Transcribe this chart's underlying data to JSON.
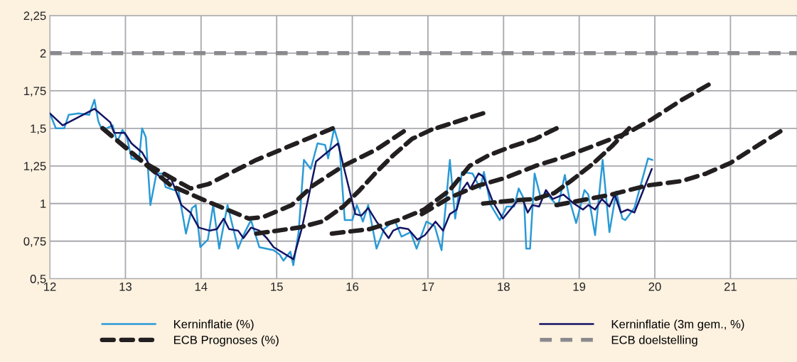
{
  "chart_data": {
    "type": "line",
    "xlim": [
      12,
      21.88
    ],
    "ylim": [
      0.5,
      2.25
    ],
    "xticks": [
      12,
      13,
      14,
      15,
      16,
      17,
      18,
      19,
      20,
      21
    ],
    "yticks": [
      {
        "value": 0.5,
        "label": "0,5"
      },
      {
        "value": 0.75,
        "label": "0,75"
      },
      {
        "value": 1,
        "label": "1"
      },
      {
        "value": 1.25,
        "label": "1,25"
      },
      {
        "value": 1.5,
        "label": "1,5"
      },
      {
        "value": 1.75,
        "label": "1,75"
      },
      {
        "value": 2,
        "label": "2"
      },
      {
        "value": 2.25,
        "label": "2,25"
      }
    ],
    "grid": true,
    "legend": "bottom",
    "ref_lines": [
      {
        "axis": "y",
        "value": 2,
        "label": "ECB doelstelling",
        "color": "#8a8a8e",
        "line_style": "dashed"
      }
    ],
    "series": [
      {
        "name": "Kerninflatie (%)",
        "color": "#2a9ad6",
        "line_style": "solid",
        "x": [
          12.0,
          12.08,
          12.19,
          12.25,
          12.38,
          12.52,
          12.59,
          12.64,
          12.68,
          12.75,
          12.83,
          12.89,
          12.96,
          13.02,
          13.08,
          13.18,
          13.22,
          13.27,
          13.33,
          13.41,
          13.49,
          13.53,
          13.64,
          13.7,
          13.8,
          13.88,
          13.93,
          13.99,
          14.09,
          14.16,
          14.24,
          14.35,
          14.49,
          14.57,
          14.66,
          14.77,
          14.96,
          15.04,
          15.09,
          15.18,
          15.22,
          15.29,
          15.36,
          15.45,
          15.54,
          15.64,
          15.68,
          15.76,
          15.83,
          15.9,
          16.0,
          16.06,
          16.14,
          16.21,
          16.32,
          16.42,
          16.56,
          16.65,
          16.77,
          16.85,
          16.98,
          17.09,
          17.18,
          17.29,
          17.36,
          17.45,
          17.59,
          17.69,
          17.74,
          17.83,
          17.95,
          18.04,
          18.14,
          18.2,
          18.27,
          18.3,
          18.35,
          18.41,
          18.49,
          18.56,
          18.72,
          18.81,
          18.88,
          18.96,
          19.07,
          19.12,
          19.21,
          19.31,
          19.4,
          19.44,
          19.49,
          19.57,
          19.61,
          19.73,
          19.91,
          19.97
        ],
        "values": [
          1.6,
          1.5,
          1.5,
          1.59,
          1.6,
          1.59,
          1.69,
          1.55,
          1.5,
          1.5,
          1.52,
          1.41,
          1.49,
          1.44,
          1.3,
          1.29,
          1.5,
          1.44,
          0.99,
          1.2,
          1.2,
          1.11,
          1.09,
          1.09,
          0.8,
          0.97,
          0.99,
          0.71,
          0.76,
          0.99,
          0.7,
          0.99,
          0.7,
          0.8,
          0.89,
          0.71,
          0.69,
          0.66,
          0.62,
          0.68,
          0.59,
          0.81,
          1.29,
          1.23,
          1.4,
          1.39,
          1.3,
          1.5,
          1.38,
          0.89,
          0.89,
          0.99,
          0.88,
          0.99,
          0.7,
          0.83,
          0.89,
          0.78,
          0.81,
          0.7,
          0.88,
          0.85,
          0.69,
          1.29,
          0.9,
          1.21,
          1.2,
          1.1,
          1.21,
          0.99,
          0.89,
          0.98,
          0.98,
          1.1,
          1.03,
          0.7,
          0.7,
          1.2,
          1.04,
          1.07,
          0.98,
          1.19,
          1.01,
          0.87,
          1.09,
          1.06,
          0.79,
          1.29,
          0.81,
          0.93,
          1.08,
          0.9,
          0.89,
          0.97,
          1.3,
          1.29
        ]
      },
      {
        "name": "Kerninflatie (3m gem., %)",
        "color": "#141464",
        "line_style": "solid",
        "x": [
          12.0,
          12.17,
          12.59,
          12.8,
          12.85,
          12.99,
          13.08,
          13.22,
          13.36,
          13.52,
          13.6,
          13.74,
          13.86,
          13.97,
          14.11,
          14.21,
          14.3,
          14.37,
          14.49,
          14.56,
          14.66,
          14.77,
          14.87,
          14.96,
          15.22,
          15.34,
          15.52,
          15.81,
          16.04,
          16.12,
          16.21,
          16.32,
          16.48,
          16.54,
          16.63,
          16.74,
          16.86,
          16.96,
          17.1,
          17.2,
          17.29,
          17.38,
          17.45,
          17.52,
          17.56,
          17.67,
          17.73,
          17.86,
          17.99,
          18.17,
          18.25,
          18.32,
          18.38,
          18.47,
          18.56,
          18.65,
          18.79,
          18.93,
          19.05,
          19.12,
          19.21,
          19.3,
          19.4,
          19.47,
          19.55,
          19.64,
          19.73,
          19.96
        ],
        "values": [
          1.6,
          1.52,
          1.63,
          1.54,
          1.47,
          1.47,
          1.4,
          1.34,
          1.22,
          1.15,
          1.17,
          0.99,
          0.94,
          0.84,
          0.82,
          0.83,
          0.9,
          0.83,
          0.82,
          0.77,
          0.84,
          0.82,
          0.77,
          0.71,
          0.63,
          0.85,
          1.28,
          1.4,
          0.93,
          0.92,
          0.97,
          0.88,
          0.77,
          0.82,
          0.84,
          0.83,
          0.76,
          0.79,
          0.88,
          0.82,
          0.93,
          0.96,
          1.09,
          1.14,
          1.1,
          1.2,
          1.18,
          1.01,
          0.9,
          1.01,
          1.03,
          0.94,
          0.99,
          0.98,
          1.09,
          1.03,
          1.06,
          1.0,
          0.96,
          0.99,
          0.96,
          1.03,
          0.98,
          1.06,
          0.94,
          0.96,
          0.94,
          1.23
        ]
      },
      {
        "name": "ECB Prognoses (%)",
        "color": "#231f20",
        "line_style": "dashed",
        "x": [
          12.7,
          13.22,
          13.86,
          14.1,
          14.73,
          15.45,
          15.74
        ],
        "values": [
          1.5,
          1.28,
          1.1,
          1.13,
          1.29,
          1.44,
          1.5
        ]
      },
      {
        "color": "#231f20",
        "line_style": "dashed",
        "x": [
          12.7,
          13.6,
          14.1,
          14.63,
          14.82,
          15.2,
          15.48,
          15.88,
          16.32,
          16.68
        ],
        "values": [
          1.5,
          1.12,
          1.01,
          0.9,
          0.91,
          0.99,
          1.12,
          1.25,
          1.36,
          1.48
        ]
      },
      {
        "color": "#231f20",
        "line_style": "dashed",
        "x": [
          14.73,
          15.29,
          15.6,
          15.88,
          16.1,
          16.32,
          16.54,
          16.79,
          17.04,
          17.29,
          17.73
        ],
        "values": [
          0.8,
          0.84,
          0.88,
          0.98,
          1.09,
          1.21,
          1.32,
          1.43,
          1.49,
          1.53,
          1.6
        ]
      },
      {
        "color": "#231f20",
        "line_style": "dashed",
        "x": [
          15.73,
          16.23,
          16.61,
          16.95,
          17.29,
          17.55,
          17.8,
          18.11,
          18.42,
          18.7
        ],
        "values": [
          0.8,
          0.83,
          0.89,
          0.96,
          1.09,
          1.25,
          1.32,
          1.38,
          1.43,
          1.5
        ]
      },
      {
        "color": "#231f20",
        "line_style": "dashed",
        "x": [
          16.92,
          17.29,
          17.67,
          18.02,
          18.42,
          18.8,
          19.12,
          19.43,
          19.64,
          19.96,
          20.36,
          20.71
        ],
        "values": [
          0.93,
          1.04,
          1.12,
          1.17,
          1.25,
          1.31,
          1.37,
          1.43,
          1.47,
          1.56,
          1.69,
          1.79
        ]
      },
      {
        "color": "#231f20",
        "line_style": "dashed",
        "x": [
          17.73,
          18.11,
          18.42,
          18.67,
          18.89,
          19.17,
          19.43,
          19.66
        ],
        "values": [
          1.0,
          1.02,
          1.03,
          1.07,
          1.15,
          1.26,
          1.38,
          1.5
        ]
      },
      {
        "color": "#231f20",
        "line_style": "dashed",
        "x": [
          18.7,
          19.43,
          19.9,
          20.36,
          20.68,
          21.0,
          21.31,
          21.66
        ],
        "values": [
          0.99,
          1.06,
          1.12,
          1.15,
          1.2,
          1.27,
          1.37,
          1.48
        ]
      }
    ]
  }
}
